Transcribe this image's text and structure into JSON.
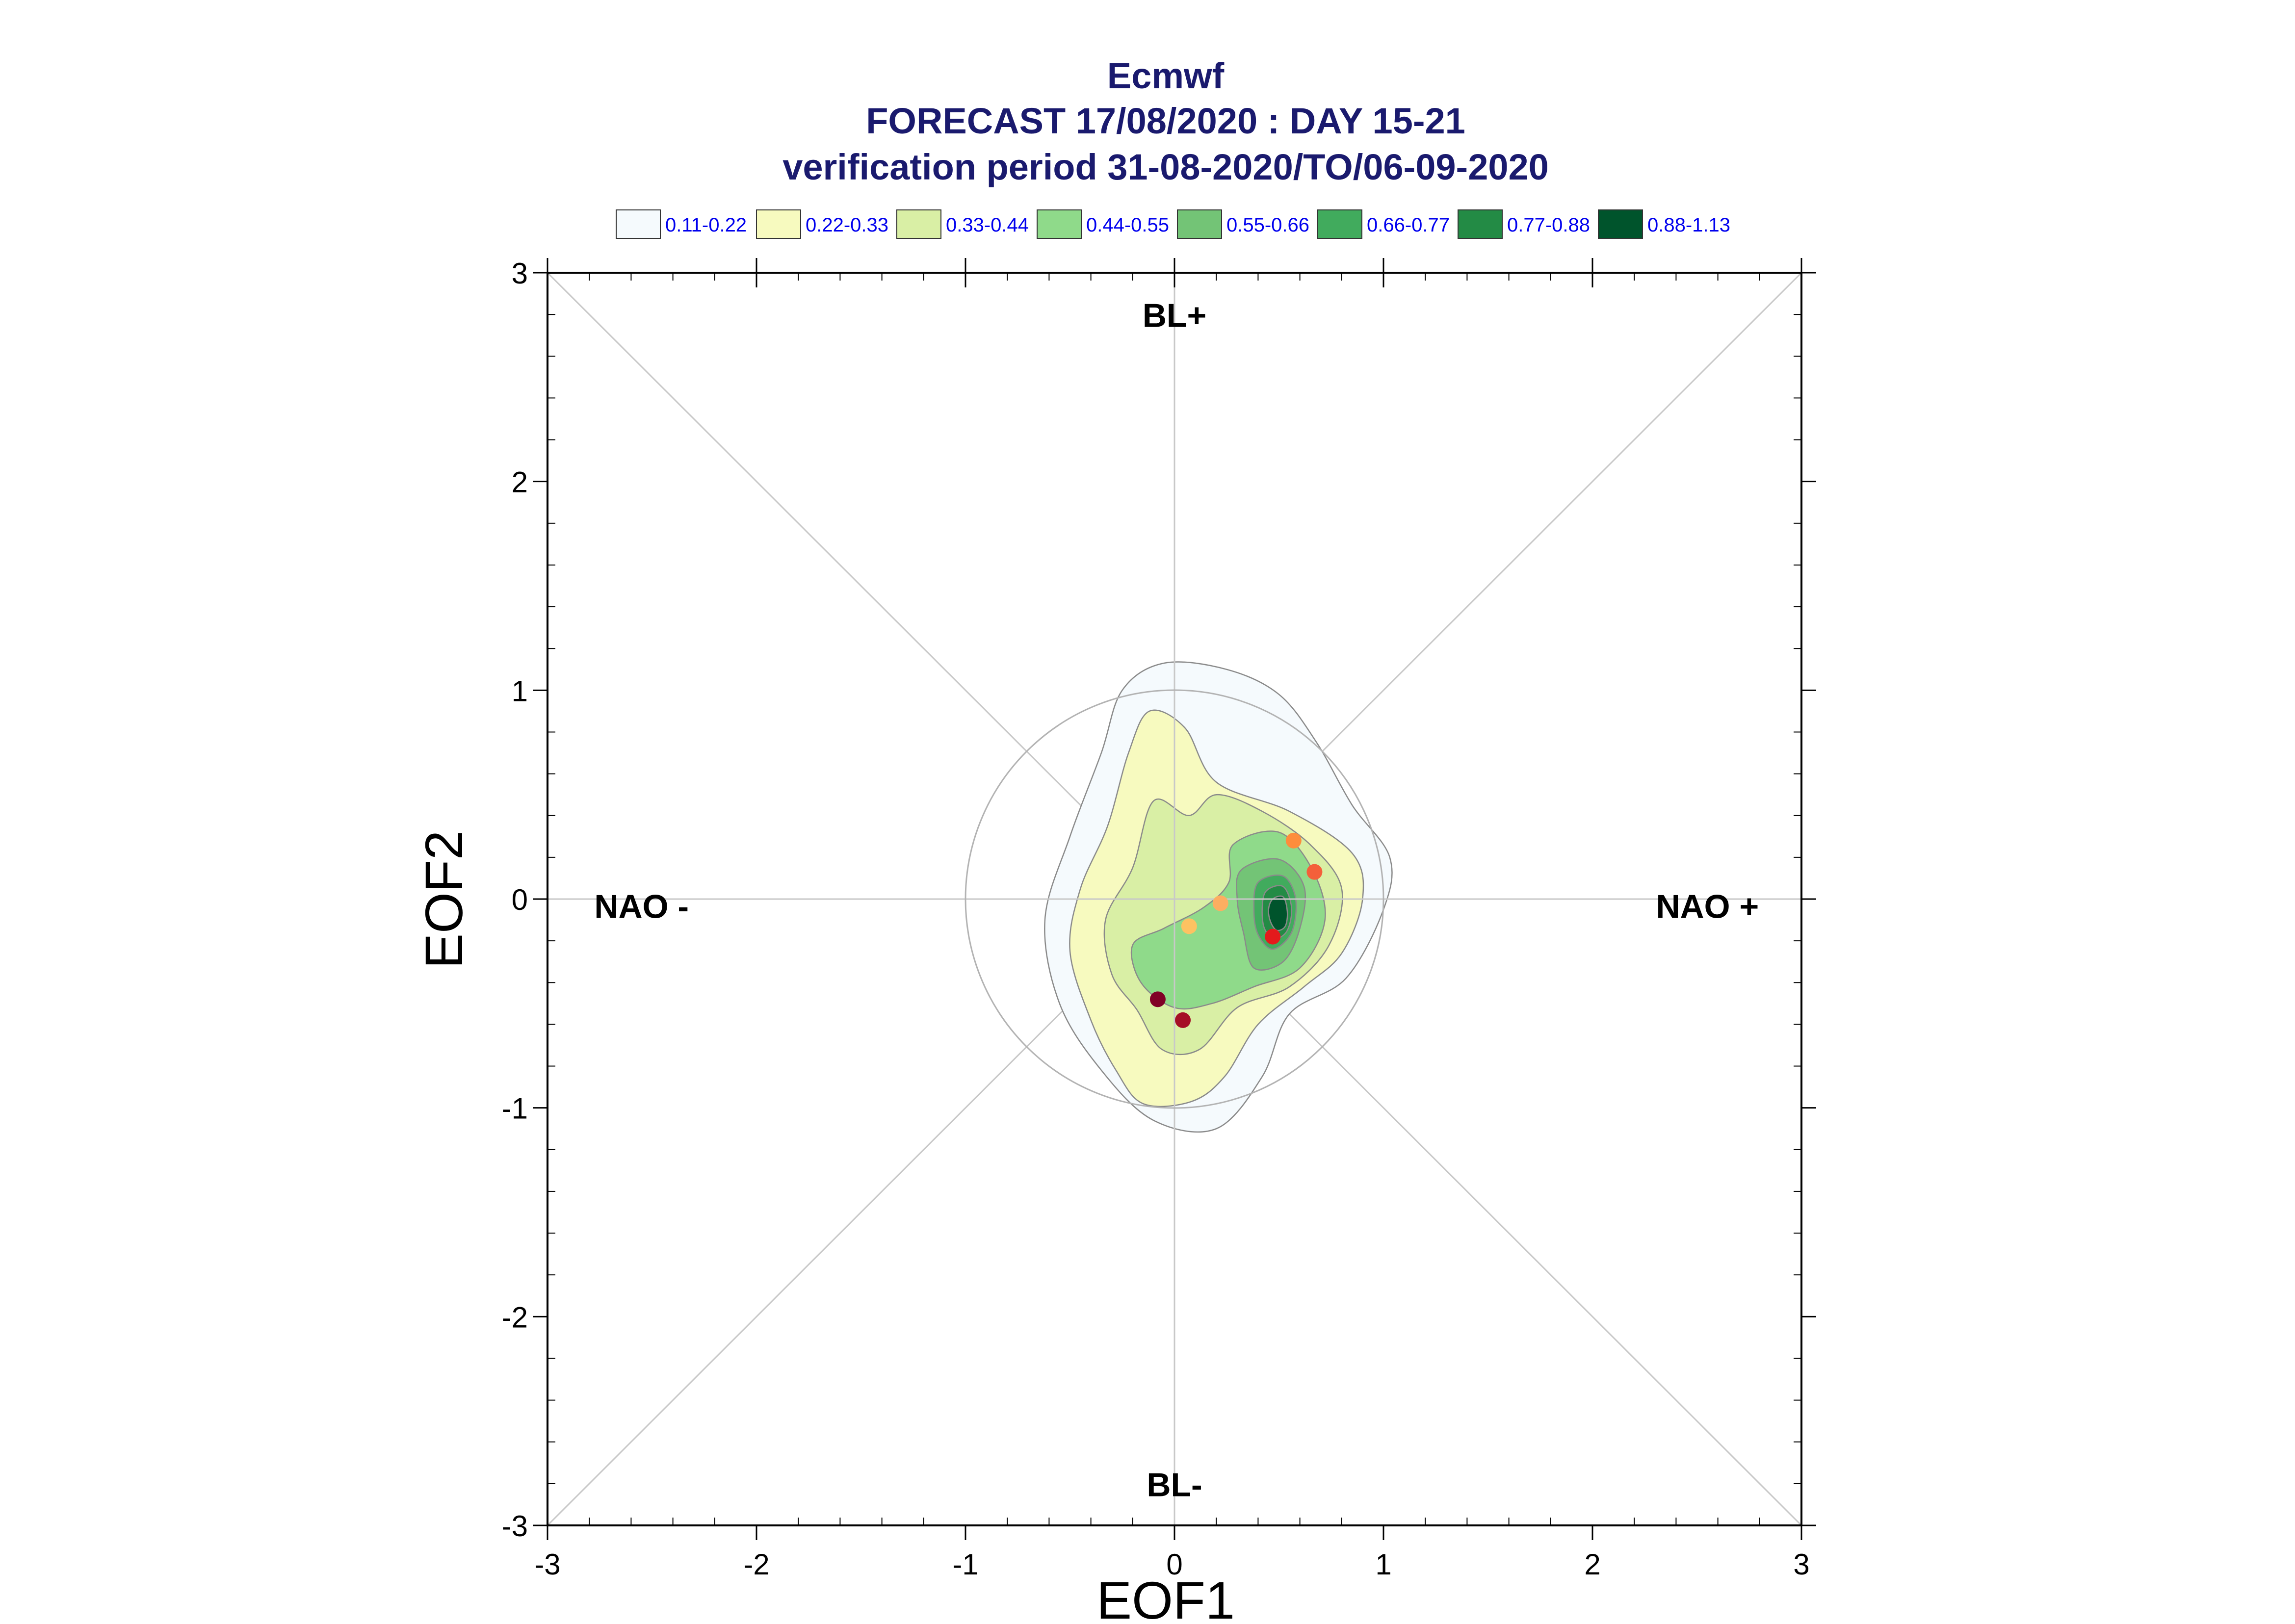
{
  "chart_data": {
    "type": "scatter",
    "title_lines": [
      "Ecmwf",
      "FORECAST 17/08/2020 : DAY 15-21",
      "verification period 31-08-2020/TO/06-09-2020"
    ],
    "xlabel": "EOF1",
    "ylabel": "EOF2",
    "xlim": [
      -3,
      3
    ],
    "ylim": [
      -3,
      3
    ],
    "xticks": [
      -3,
      -2,
      -1,
      0,
      1,
      2,
      3
    ],
    "yticks": [
      -3,
      -2,
      -1,
      0,
      1,
      2,
      3
    ],
    "grid": "diagonals and zero axes",
    "legend_placement": "top",
    "density_legend": [
      {
        "label": "0.11-0.22",
        "color": "#f5fafd"
      },
      {
        "label": "0.22-0.33",
        "color": "#f7fabf"
      },
      {
        "label": "0.33-0.44",
        "color": "#d9efa5"
      },
      {
        "label": "0.44-0.55",
        "color": "#8fda8a"
      },
      {
        "label": "0.55-0.66",
        "color": "#73c476"
      },
      {
        "label": "0.66-0.77",
        "color": "#41ab5d"
      },
      {
        "label": "0.77-0.88",
        "color": "#238b45"
      },
      {
        "label": "0.88-1.13",
        "color": "#00542c"
      }
    ],
    "regime_labels": [
      {
        "text": "BL+",
        "x": 0,
        "y": 2.74
      },
      {
        "text": "BL-",
        "x": 0,
        "y": -2.86
      },
      {
        "text": "NAO -",
        "x": -2.55,
        "y": -0.09
      },
      {
        "text": "NAO +",
        "x": 2.55,
        "y": -0.09
      }
    ],
    "reference_circle_radius": 1.0,
    "contours": [
      {
        "level": "0.11-0.22",
        "points": [
          [
            -0.05,
            1.13
          ],
          [
            0.25,
            1.1
          ],
          [
            0.5,
            0.98
          ],
          [
            0.68,
            0.75
          ],
          [
            0.85,
            0.45
          ],
          [
            1.03,
            0.2
          ],
          [
            1.0,
            -0.05
          ],
          [
            0.82,
            -0.38
          ],
          [
            0.55,
            -0.55
          ],
          [
            0.42,
            -0.85
          ],
          [
            0.2,
            -1.1
          ],
          [
            -0.1,
            -1.06
          ],
          [
            -0.35,
            -0.82
          ],
          [
            -0.55,
            -0.5
          ],
          [
            -0.62,
            -0.1
          ],
          [
            -0.5,
            0.3
          ],
          [
            -0.35,
            0.7
          ],
          [
            -0.25,
            1.0
          ]
        ]
      },
      {
        "level": "0.22-0.33",
        "points": [
          [
            -0.12,
            0.9
          ],
          [
            0.05,
            0.82
          ],
          [
            0.2,
            0.56
          ],
          [
            0.55,
            0.42
          ],
          [
            0.85,
            0.22
          ],
          [
            0.9,
            0.0
          ],
          [
            0.8,
            -0.26
          ],
          [
            0.62,
            -0.42
          ],
          [
            0.4,
            -0.6
          ],
          [
            0.24,
            -0.85
          ],
          [
            0.08,
            -0.97
          ],
          [
            -0.15,
            -0.98
          ],
          [
            -0.28,
            -0.82
          ],
          [
            -0.4,
            -0.58
          ],
          [
            -0.5,
            -0.25
          ],
          [
            -0.45,
            0.05
          ],
          [
            -0.32,
            0.35
          ],
          [
            -0.22,
            0.7
          ]
        ]
      },
      {
        "level": "0.33-0.44",
        "points": [
          [
            -0.1,
            0.47
          ],
          [
            0.07,
            0.4
          ],
          [
            0.2,
            0.5
          ],
          [
            0.42,
            0.42
          ],
          [
            0.65,
            0.26
          ],
          [
            0.8,
            0.05
          ],
          [
            0.74,
            -0.22
          ],
          [
            0.55,
            -0.42
          ],
          [
            0.3,
            -0.52
          ],
          [
            0.12,
            -0.72
          ],
          [
            -0.06,
            -0.72
          ],
          [
            -0.18,
            -0.53
          ],
          [
            -0.3,
            -0.36
          ],
          [
            -0.33,
            -0.1
          ],
          [
            -0.2,
            0.15
          ]
        ]
      },
      {
        "level": "0.44-0.55",
        "points": [
          [
            0.28,
            0.26
          ],
          [
            0.5,
            0.32
          ],
          [
            0.66,
            0.14
          ],
          [
            0.72,
            -0.1
          ],
          [
            0.6,
            -0.33
          ],
          [
            0.38,
            -0.42
          ],
          [
            0.18,
            -0.5
          ],
          [
            0.0,
            -0.52
          ],
          [
            -0.16,
            -0.4
          ],
          [
            -0.2,
            -0.22
          ],
          [
            -0.05,
            -0.14
          ],
          [
            0.14,
            -0.04
          ],
          [
            0.26,
            0.08
          ]
        ]
      },
      {
        "level": "0.55-0.66",
        "points": [
          [
            0.32,
            0.14
          ],
          [
            0.5,
            0.19
          ],
          [
            0.62,
            0.06
          ],
          [
            0.6,
            -0.14
          ],
          [
            0.52,
            -0.3
          ],
          [
            0.38,
            -0.33
          ],
          [
            0.33,
            -0.16
          ],
          [
            0.3,
            0.0
          ]
        ]
      },
      {
        "level": "0.66-0.77",
        "points": [
          [
            0.4,
            0.08
          ],
          [
            0.52,
            0.11
          ],
          [
            0.58,
            0.0
          ],
          [
            0.56,
            -0.16
          ],
          [
            0.47,
            -0.24
          ],
          [
            0.4,
            -0.17
          ],
          [
            0.38,
            -0.05
          ]
        ]
      },
      {
        "level": "0.77-0.88",
        "points": [
          [
            0.44,
            0.04
          ],
          [
            0.52,
            0.06
          ],
          [
            0.56,
            -0.04
          ],
          [
            0.54,
            -0.15
          ],
          [
            0.48,
            -0.19
          ],
          [
            0.43,
            -0.14
          ],
          [
            0.42,
            -0.04
          ]
        ]
      },
      {
        "level": "0.88-1.13",
        "points": [
          [
            0.47,
            0.0
          ],
          [
            0.52,
            0.01
          ],
          [
            0.54,
            -0.06
          ],
          [
            0.53,
            -0.13
          ],
          [
            0.49,
            -0.15
          ],
          [
            0.46,
            -0.11
          ],
          [
            0.45,
            -0.05
          ]
        ]
      }
    ],
    "points": [
      {
        "x": 0.57,
        "y": 0.28,
        "color": "#fd8d3c"
      },
      {
        "x": 0.67,
        "y": 0.13,
        "color": "#f4603a"
      },
      {
        "x": 0.22,
        "y": -0.02,
        "color": "#fdae61"
      },
      {
        "x": 0.07,
        "y": -0.13,
        "color": "#fdc262"
      },
      {
        "x": 0.47,
        "y": -0.18,
        "color": "#e31a1c"
      },
      {
        "x": -0.08,
        "y": -0.48,
        "color": "#800026"
      },
      {
        "x": 0.04,
        "y": -0.58,
        "color": "#a50f26"
      }
    ]
  }
}
